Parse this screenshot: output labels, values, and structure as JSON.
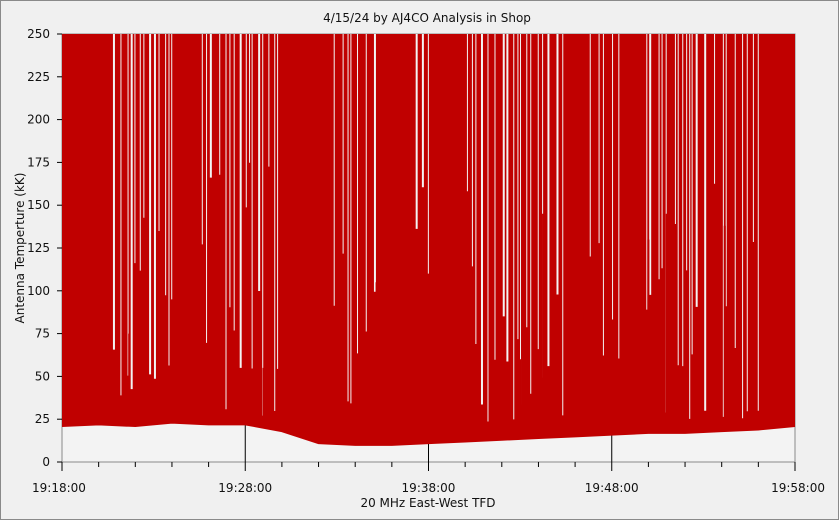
{
  "chart_data": {
    "type": "area",
    "title": "4/15/24  by  AJ4CO Analysis  in  Shop",
    "xlabel": "20 MHz East-West TFD",
    "ylabel": "Antenna Temperture (kK)",
    "ylim": [
      0,
      250
    ],
    "yticks": [
      0,
      25,
      50,
      75,
      100,
      125,
      150,
      175,
      200,
      225,
      250
    ],
    "xlim": [
      "19:18:00",
      "19:58:00"
    ],
    "xticks": [
      "19:18:00",
      "19:28:00",
      "19:38:00",
      "19:48:00",
      "19:58:00"
    ],
    "grid": true,
    "series": [
      {
        "color": "#c00000",
        "fill": "#c00000",
        "baseline": {
          "x": [
            "19:18:00",
            "19:20:00",
            "19:22:00",
            "19:24:00",
            "19:26:00",
            "19:28:00",
            "19:30:00",
            "19:32:00",
            "19:34:00",
            "19:36:00",
            "19:38:00",
            "19:40:00",
            "19:42:00",
            "19:44:00",
            "19:46:00",
            "19:48:00",
            "19:50:00",
            "19:52:00",
            "19:54:00",
            "19:56:00",
            "19:58:00"
          ],
          "y": [
            21,
            22,
            21,
            23,
            22,
            22,
            18,
            11,
            10,
            10,
            11,
            12,
            13,
            14,
            15,
            16,
            17,
            17,
            18,
            19,
            21
          ]
        },
        "peaks": {
          "x": [
            "19:21:00",
            "19:21:40",
            "19:23:15",
            "19:23:30",
            "19:24:00",
            "19:28:15",
            "19:28:40",
            "19:29:00",
            "19:29:30",
            "19:33:00",
            "19:33:20",
            "19:35:10",
            "19:37:20",
            "19:38:00",
            "19:40:00",
            "19:40:45",
            "19:41:30",
            "19:42:30",
            "19:43:00",
            "19:44:15",
            "19:44:50",
            "19:45:30",
            "19:46:50",
            "19:47:00",
            "19:48:05",
            "19:48:30",
            "19:50:00",
            "19:51:00",
            "19:52:30",
            "19:53:30",
            "19:54:10",
            "19:55:00",
            "19:55:30"
          ],
          "y": [
            75,
            75,
            70,
            90,
            95,
            45,
            48,
            55,
            50,
            120,
            65,
            105,
            90,
            110,
            98,
            130,
            40,
            95,
            60,
            145,
            138,
            90,
            120,
            82,
            30,
            38,
            130,
            145,
            130,
            150,
            138,
            195,
            180
          ]
        },
        "saturated_spans": [
          [
            "19:18:05",
            "19:20:45"
          ],
          [
            "19:24:05",
            "19:25:30"
          ],
          [
            "19:30:00",
            "19:32:40"
          ],
          [
            "19:35:20",
            "19:37:10"
          ],
          [
            "19:38:20",
            "19:39:50"
          ],
          [
            "19:45:40",
            "19:46:40"
          ],
          [
            "19:48:40",
            "19:49:50"
          ],
          [
            "19:56:00",
            "19:57:55"
          ]
        ]
      }
    ]
  }
}
